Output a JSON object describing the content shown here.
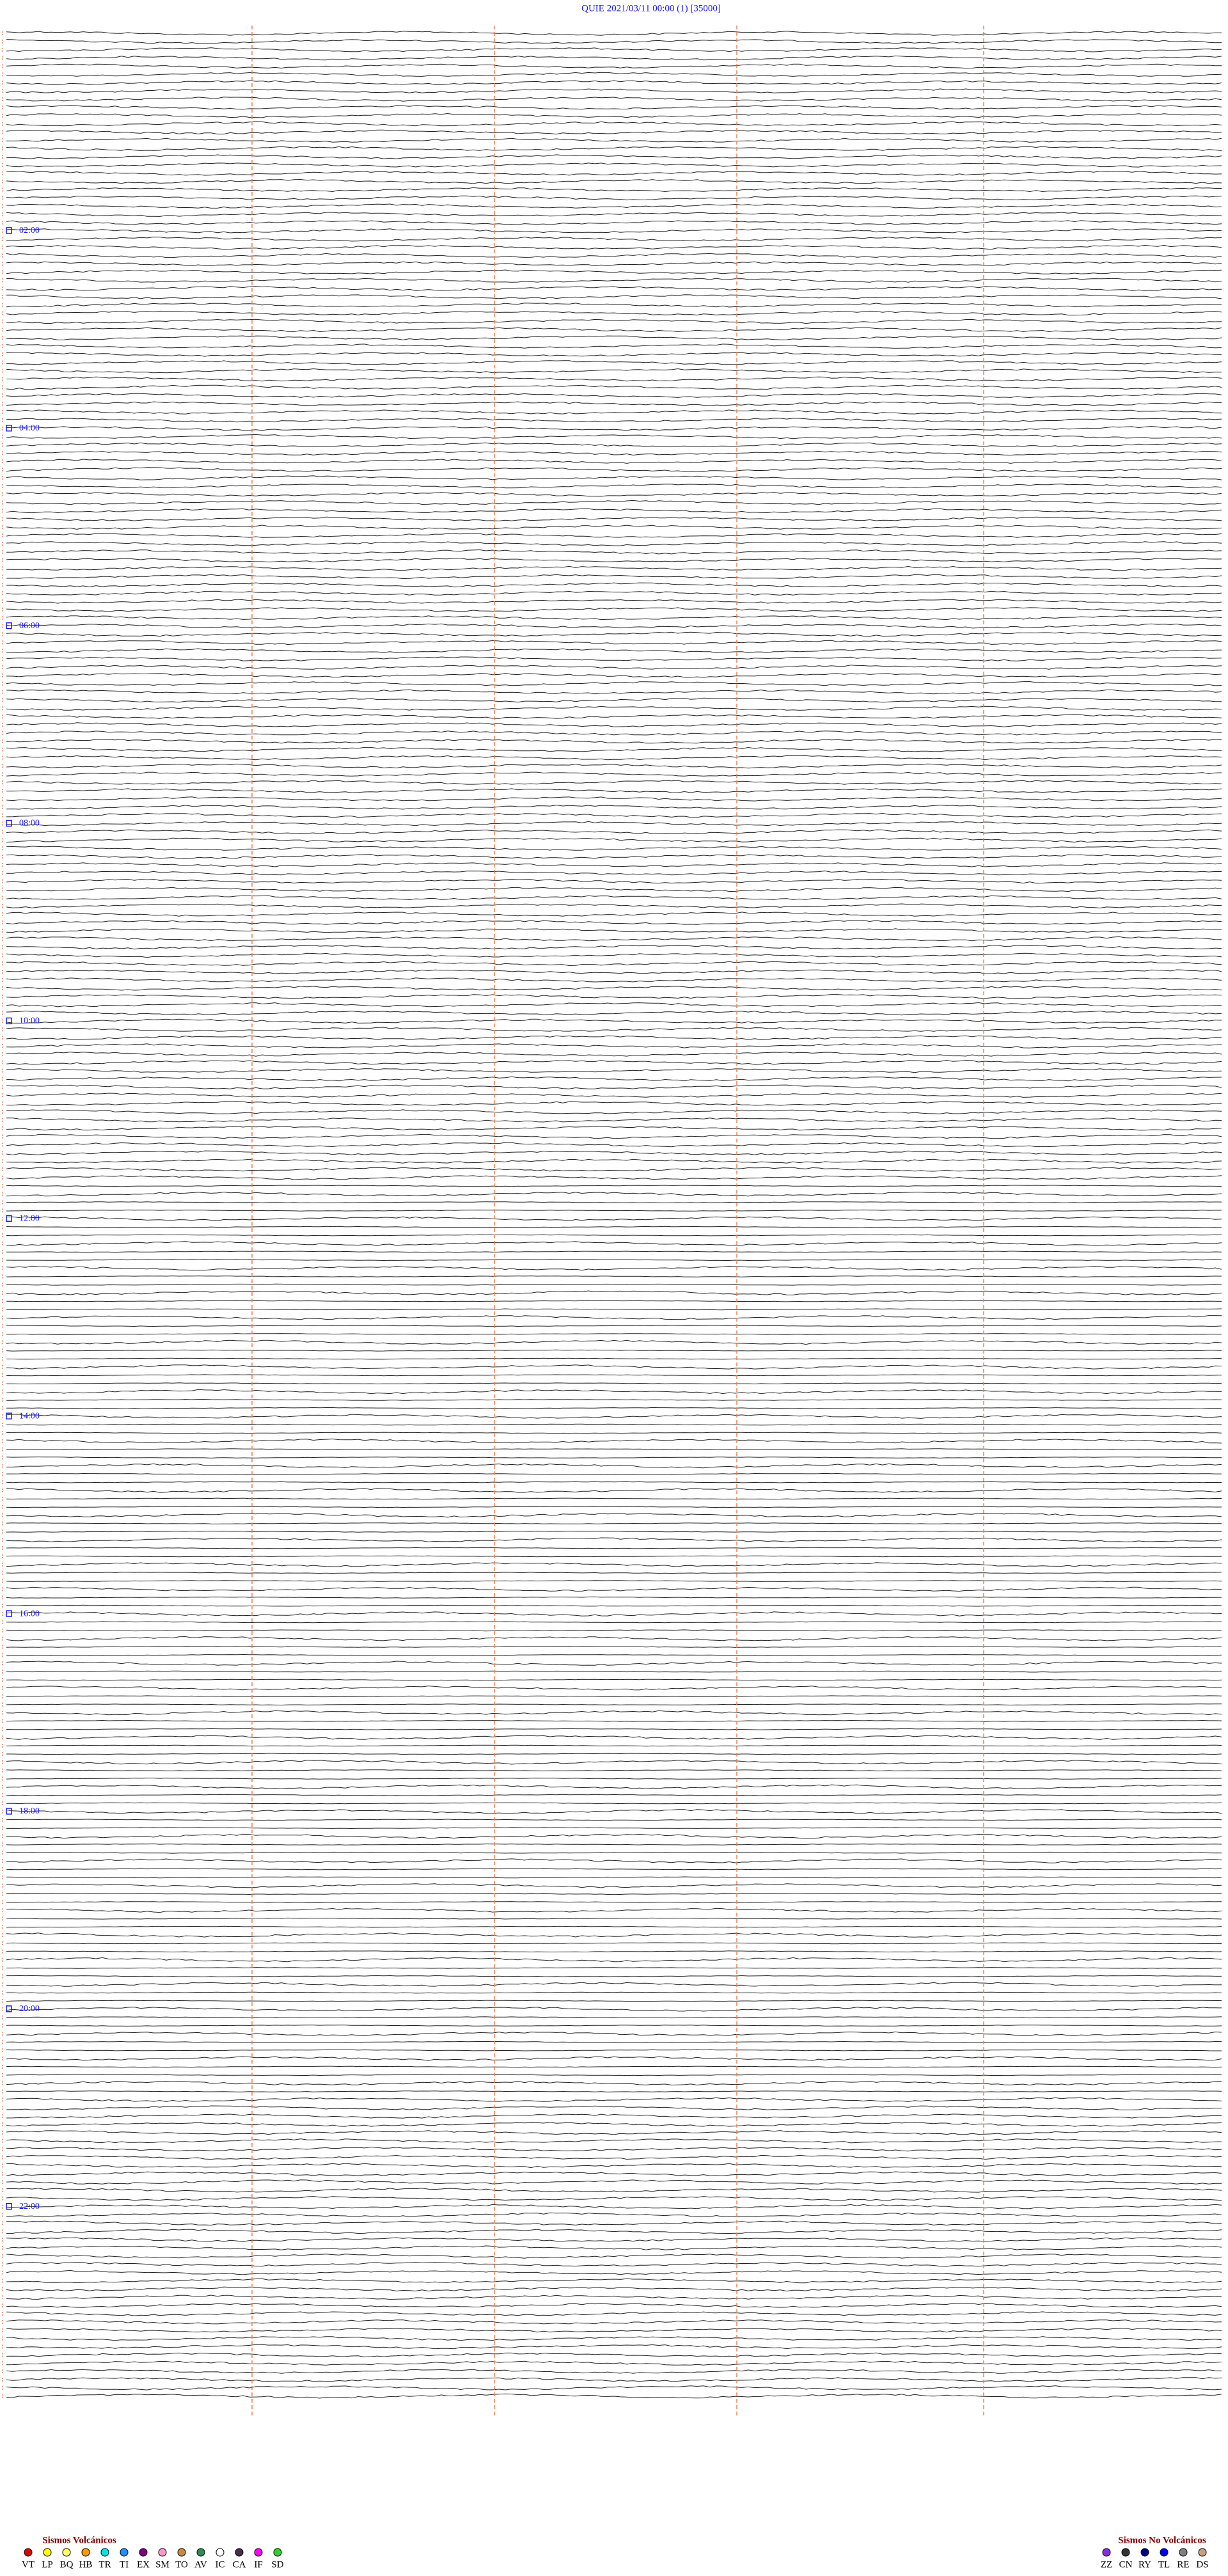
{
  "header": {
    "title": "QUIE     2021/03/11 00:00     (1)    [35000]"
  },
  "time_labels": [
    "02:00",
    "04:00",
    "06:00",
    "08:00",
    "10:00",
    "12:00",
    "14:00",
    "16:00",
    "18:00",
    "20:00",
    "22:00"
  ],
  "legend": {
    "volcanic": {
      "title": "Sismos Volcánicos",
      "items": [
        {
          "code": "VT",
          "color": "#e00000"
        },
        {
          "code": "LP",
          "color": "#ffff00"
        },
        {
          "code": "BQ",
          "color": "#ffff66"
        },
        {
          "code": "HB",
          "color": "#ff9900"
        },
        {
          "code": "TR",
          "color": "#00e6e6"
        },
        {
          "code": "TI",
          "color": "#1e90ff"
        },
        {
          "code": "EX",
          "color": "#800080"
        },
        {
          "code": "SM",
          "color": "#ff99cc"
        },
        {
          "code": "TO",
          "color": "#cc8844"
        },
        {
          "code": "AV",
          "color": "#2e8b57"
        },
        {
          "code": "IC",
          "color": "#ffffff"
        },
        {
          "code": "CA",
          "color": "#4b2a4b"
        },
        {
          "code": "IF",
          "color": "#ff00ff"
        },
        {
          "code": "SD",
          "color": "#33cc33"
        }
      ]
    },
    "non_volcanic": {
      "title": "Sismos No Volcánicos",
      "items": [
        {
          "code": "ZZ",
          "color": "#8a2be2"
        },
        {
          "code": "CN",
          "color": "#333333"
        },
        {
          "code": "RY",
          "color": "#00008b"
        },
        {
          "code": "TL",
          "color": "#0000ff"
        },
        {
          "code": "RE",
          "color": "#808080"
        },
        {
          "code": "DS",
          "color": "#c8a080"
        }
      ]
    }
  }
}
